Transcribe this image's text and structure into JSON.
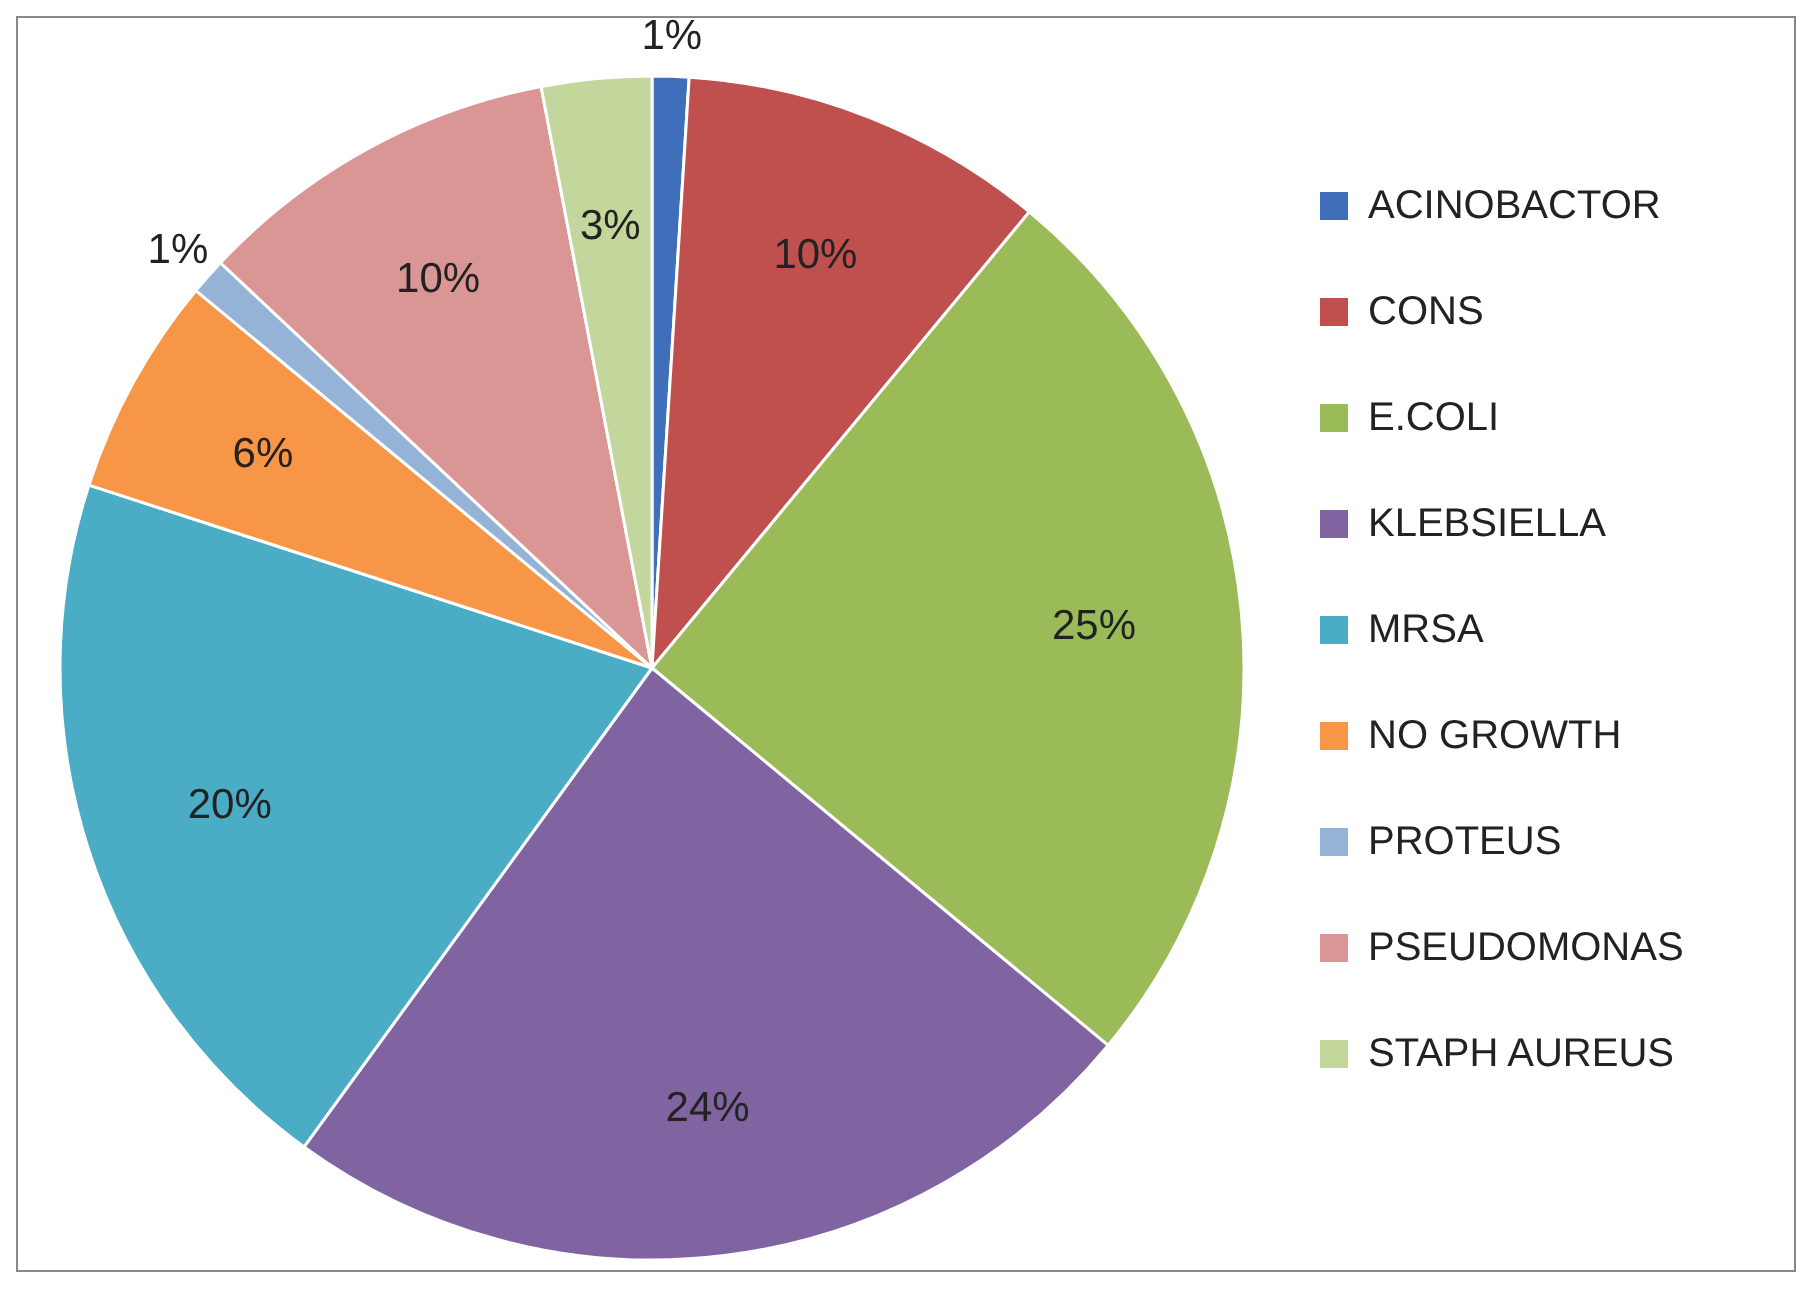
{
  "chart_data": {
    "type": "pie",
    "categories": [
      "ACINOBACTOR",
      "CONS",
      "E.COLI",
      "KLEBSIELLA",
      "MRSA",
      "NO GROWTH",
      "PROTEUS",
      "PSEUDOMONAS",
      "STAPH AUREUS"
    ],
    "values": [
      1,
      10,
      25,
      24,
      20,
      6,
      1,
      10,
      3
    ],
    "colors": [
      "#3f6fba",
      "#c0504d",
      "#9bbb59",
      "#8064a2",
      "#4bacc6",
      "#f79646",
      "#95b3d7",
      "#d99694",
      "#c3d69b"
    ],
    "value_labels": [
      "1%",
      "10%",
      "25%",
      "24%",
      "20%",
      "6%",
      "1%",
      "10%",
      "3%"
    ],
    "legend": "right"
  }
}
